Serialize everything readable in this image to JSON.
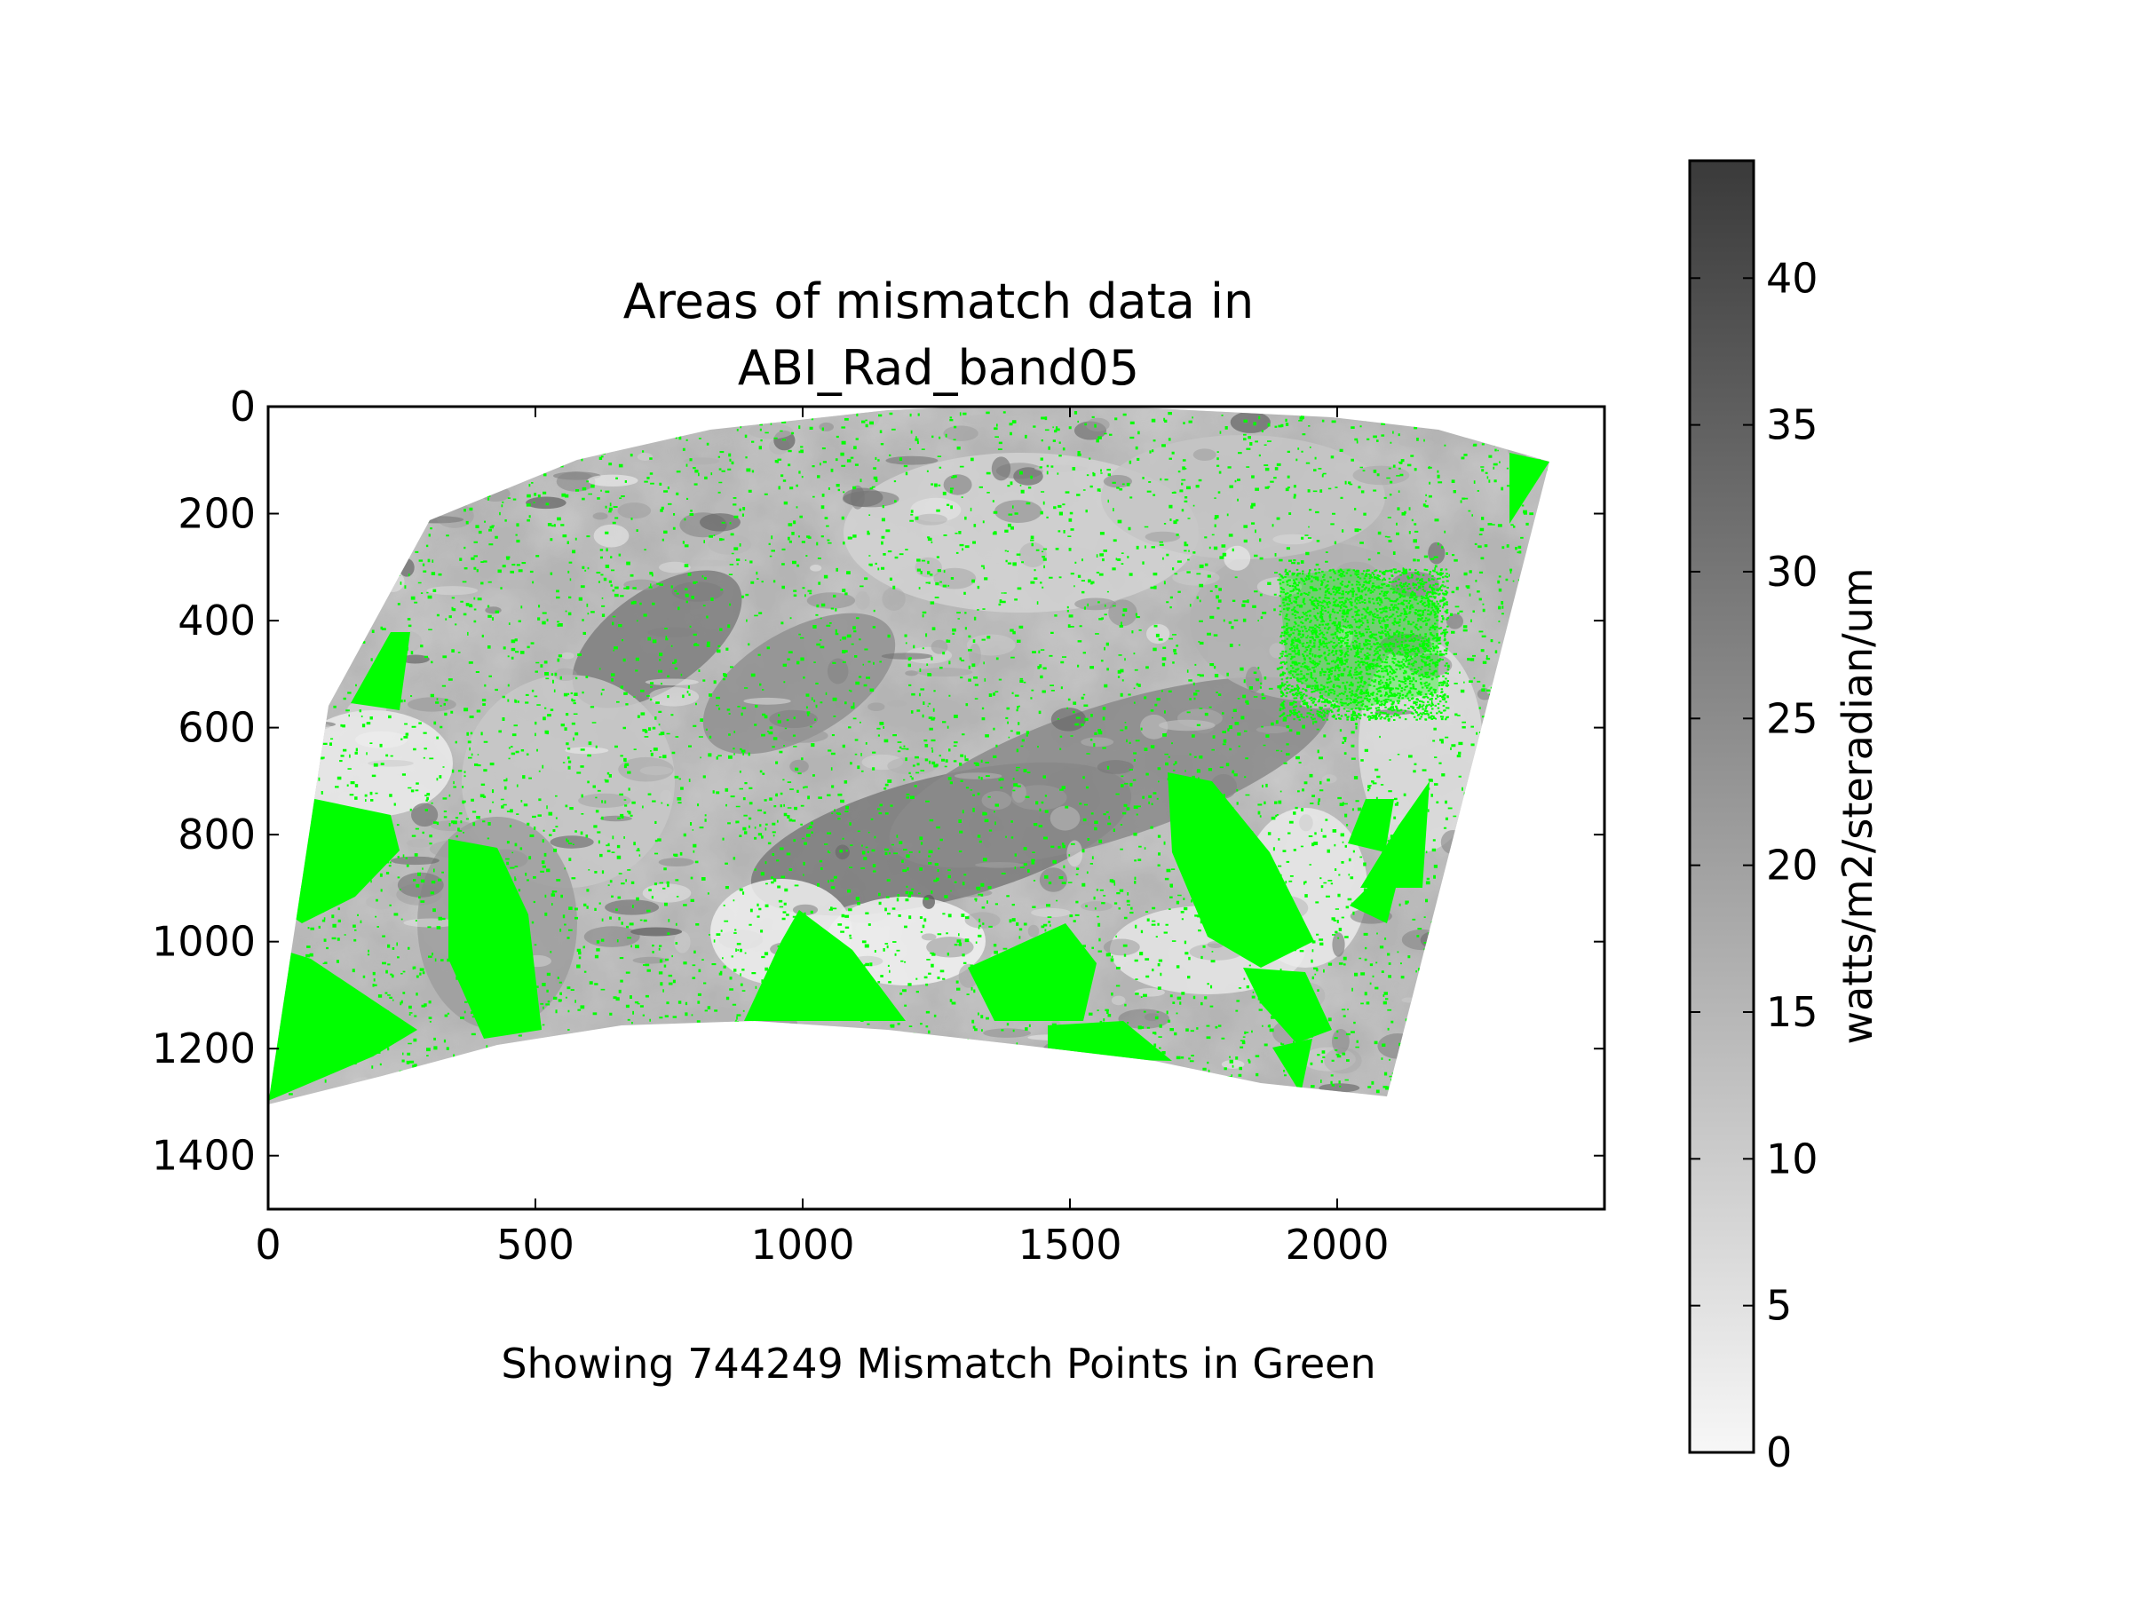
{
  "chart_data": {
    "type": "heatmap",
    "title_lines": [
      "Areas of mismatch data in",
      "ABI_Rad_band05"
    ],
    "xlabel": "Showing 744249 Mismatch Points in Green",
    "ylabel": "",
    "x_ticks": [
      0,
      500,
      1000,
      1500,
      2000
    ],
    "y_ticks": [
      0,
      200,
      400,
      600,
      800,
      1000,
      1200,
      1400
    ],
    "xlim": [
      0,
      2500
    ],
    "ylim": [
      1500,
      0
    ],
    "y_inverted": true,
    "grid": false,
    "mismatch_count": 744249,
    "mismatch_color": "#00ff00",
    "colormap": "grayscale (white = 0, dark gray = max)",
    "colorbar": {
      "label": "watts/m2/steradian/um",
      "ticks": [
        0,
        5,
        10,
        15,
        20,
        25,
        30,
        35,
        40
      ],
      "range": [
        0,
        44
      ],
      "color_min": "#f7f7f7",
      "color_max": "#3a3a3a"
    }
  }
}
